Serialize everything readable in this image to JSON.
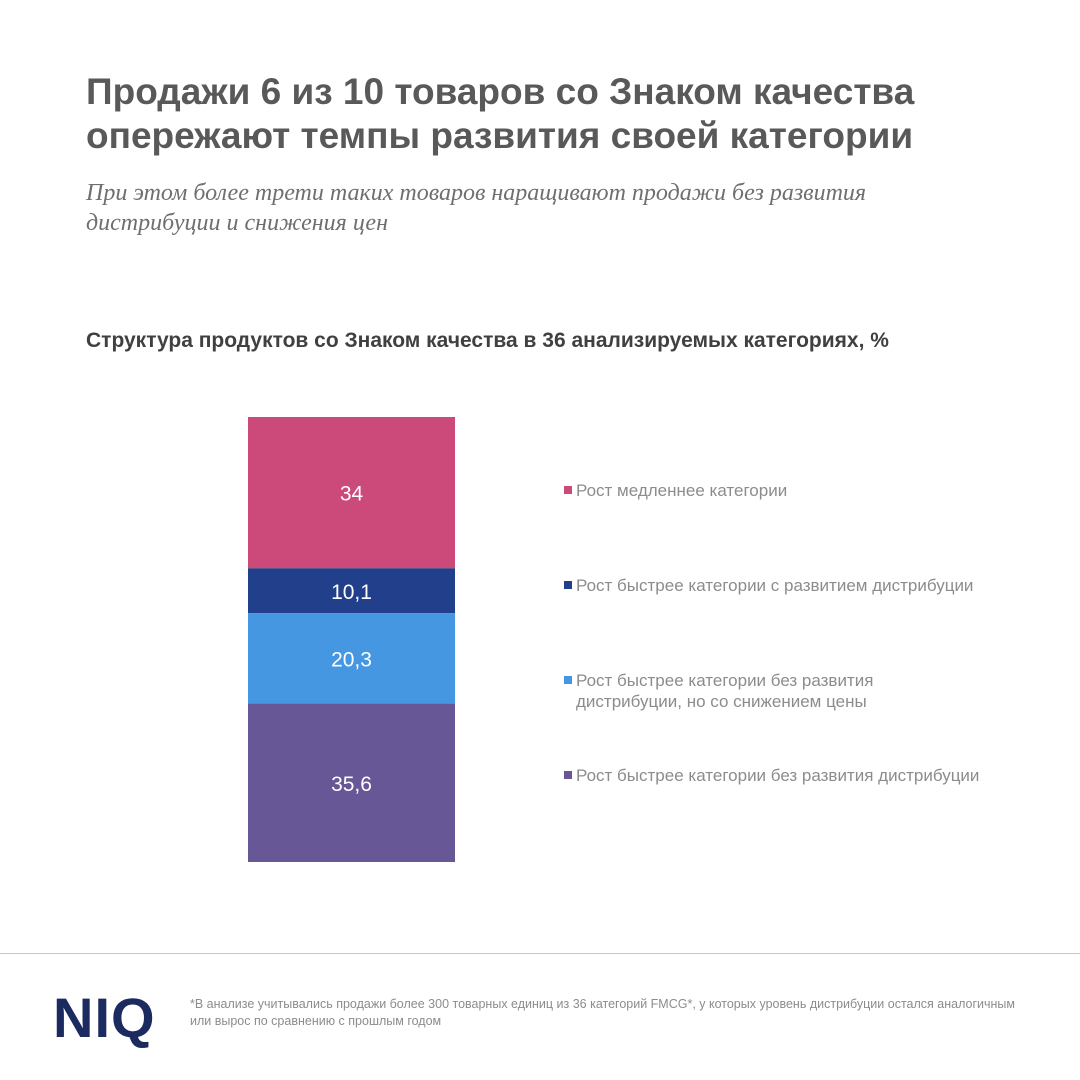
{
  "header": {
    "title": "Продажи 6 из 10 товаров со Знаком качества опережают темпы развития своей категории",
    "subtitle": "При этом более трети таких товаров наращивают продажи без развития дистрибуции и снижения цен"
  },
  "chart_data": {
    "type": "bar",
    "stacked": true,
    "orientation": "vertical",
    "title": "Структура продуктов со Знаком качества в 36 анализируемых категориях, %",
    "categories": [
      ""
    ],
    "series": [
      {
        "name": "Рост медленнее категории",
        "values": [
          34
        ],
        "label": "34",
        "color": "#cc4a7a"
      },
      {
        "name": "Рост быстрее категории с развитием дистрибуции",
        "values": [
          10.1
        ],
        "label": "10,1",
        "color": "#213f8a"
      },
      {
        "name": "Рост быстрее категории без развития дистрибуции, но со снижением цены",
        "values": [
          20.3
        ],
        "label": "20,3",
        "color": "#4497e0"
      },
      {
        "name": "Рост быстрее категории без развития дистрибуции",
        "values": [
          35.6
        ],
        "label": "35,6",
        "color": "#685796"
      }
    ],
    "legend_position": "right",
    "grid": false,
    "axes_visible": false,
    "ylim": [
      0,
      100
    ]
  },
  "footer": {
    "logo_text": "NIQ",
    "footnote": "*В анализе учитывались продажи более 300 товарных единиц из 36 категорий FMCG*, у которых уровень дистрибуции остался аналогичным или вырос по сравнению с прошлым годом"
  },
  "colors": {
    "logo": "#1b2a5f",
    "title": "#595959",
    "text_muted": "#8c8c8c"
  }
}
